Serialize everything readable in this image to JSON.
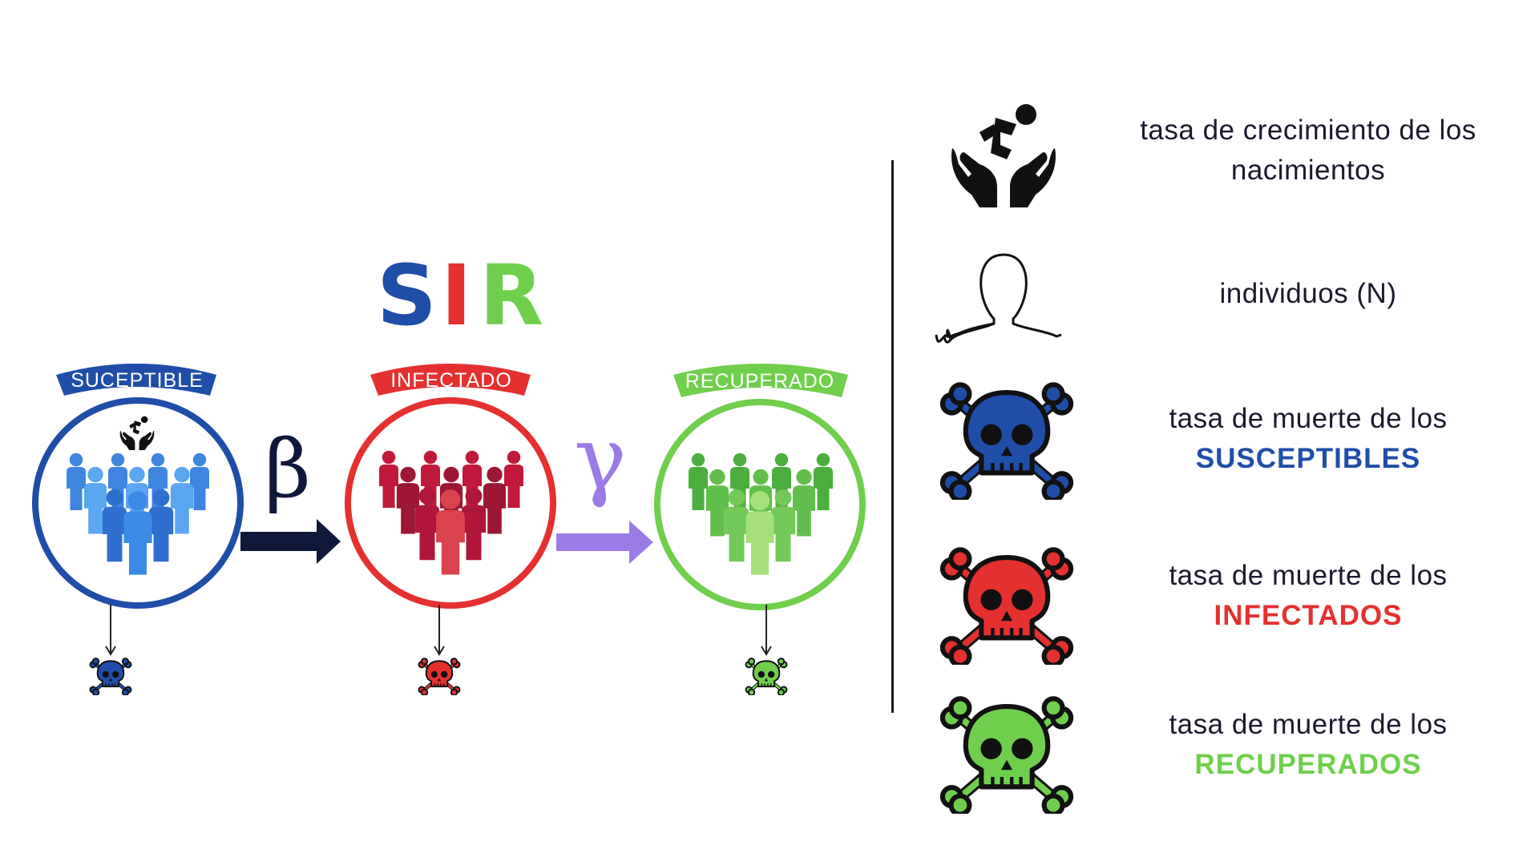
{
  "title": {
    "letters": [
      {
        "char": "S",
        "color": "#1f4ea8"
      },
      {
        "char": "I",
        "color": "#e53030"
      },
      {
        "char": "R",
        "color": "#6fcf4c"
      }
    ]
  },
  "compartments": [
    {
      "label": "SUCEPTIBLE",
      "color": "#1f4ea8",
      "people_colors": [
        "#3f86e0",
        "#5aa6f0",
        "#2f6fcf"
      ],
      "has_birth_icon": true
    },
    {
      "label": "INFECTADO",
      "color": "#e53030",
      "people_colors": [
        "#c0193c",
        "#9c1733",
        "#d9434e"
      ],
      "has_birth_icon": false
    },
    {
      "label": "RECUPERADO",
      "color": "#6fcf4c",
      "people_colors": [
        "#4cae3f",
        "#72c95a",
        "#a6e07b"
      ],
      "has_birth_icon": false
    }
  ],
  "transitions": [
    {
      "symbol": "β",
      "color": "#10183a"
    },
    {
      "symbol": "γ",
      "color": "#9b7be6"
    }
  ],
  "legend": [
    {
      "icon": "birth-hands-icon",
      "text": "tasa de crecimiento de los nacimientos",
      "emphasis": "",
      "emphasis_color": ""
    },
    {
      "icon": "person-outline-icon",
      "text": "individuos (N)",
      "emphasis": "",
      "emphasis_color": ""
    },
    {
      "icon": "skull-crossbones-icon",
      "icon_color": "#1f4ea8",
      "text": "tasa de muerte de los",
      "emphasis": "SUSCEPTIBLES",
      "emphasis_color": "#1f4ea8"
    },
    {
      "icon": "skull-crossbones-icon",
      "icon_color": "#e53030",
      "text": "tasa de muerte de los",
      "emphasis": "INFECTADOS",
      "emphasis_color": "#e53030"
    },
    {
      "icon": "skull-crossbones-icon",
      "icon_color": "#6fcf4c",
      "text": "tasa de muerte de los",
      "emphasis": "RECUPERADOS",
      "emphasis_color": "#6fcf4c"
    }
  ]
}
